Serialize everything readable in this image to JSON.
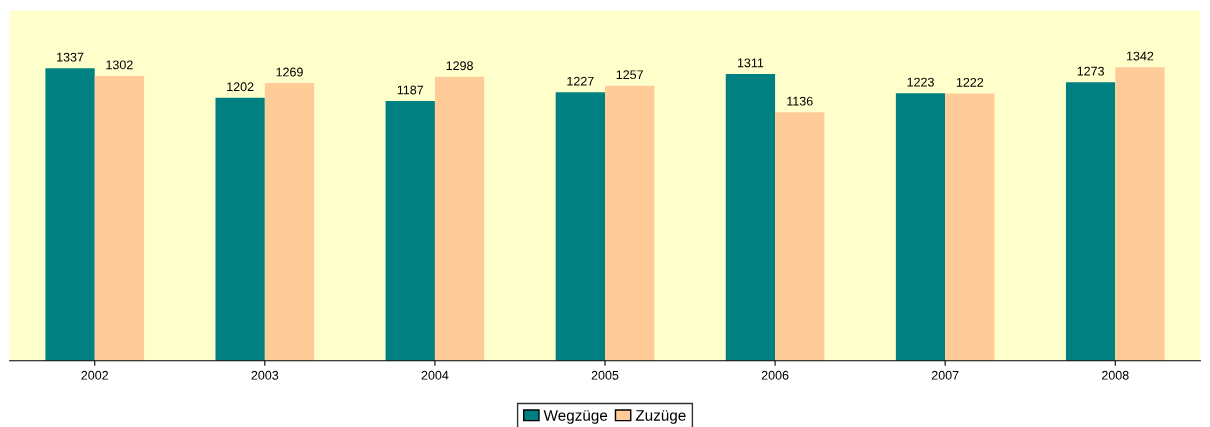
{
  "chart_data": {
    "type": "bar",
    "categories": [
      "2002",
      "2003",
      "2004",
      "2005",
      "2006",
      "2007",
      "2008"
    ],
    "series": [
      {
        "name": "Wegzüge",
        "color": "#008080",
        "values": [
          1337,
          1202,
          1187,
          1227,
          1311,
          1223,
          1273
        ]
      },
      {
        "name": "Zuzüge",
        "color": "#ffcc99",
        "values": [
          1302,
          1269,
          1298,
          1257,
          1136,
          1222,
          1342
        ]
      }
    ],
    "ylim": [
      0,
      1600
    ],
    "tick_labels": "x",
    "data_labels": true,
    "legend": "bottom",
    "grid": false
  }
}
